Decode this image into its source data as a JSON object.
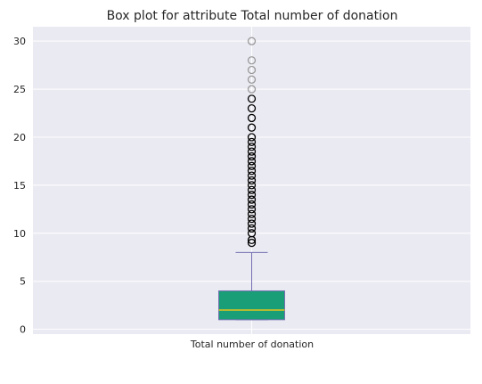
{
  "chart_data": {
    "type": "box",
    "title": "Box plot for attribute Total number of donation",
    "xlabel": "",
    "ylabel": "",
    "categories": [
      "Total number of donation"
    ],
    "ylim": [
      -0.5,
      31.5
    ],
    "yticks": [
      0,
      5,
      10,
      15,
      20,
      25,
      30
    ],
    "grid": true,
    "box": {
      "whisker_low": 1,
      "q1": 1,
      "median": 2,
      "q3": 4,
      "whisker_high": 8
    },
    "outliers": [
      9,
      9.3,
      10,
      10.5,
      11,
      11.5,
      12,
      12.5,
      13,
      13.5,
      14,
      14.5,
      15,
      15.5,
      16,
      16.5,
      17,
      17.5,
      18,
      18.5,
      19,
      19.5,
      20,
      21,
      22,
      23,
      24,
      25,
      26,
      27,
      28,
      30
    ],
    "colors": {
      "plot_bg": "#EAEAF2",
      "grid": "#ffffff",
      "box_fill": "#1A9E77",
      "box_edge": "#7570B3",
      "median": "#E6C31A",
      "whisker": "#7570B3",
      "outlier_dark": "#000000",
      "outlier_light": "#9a9a9a"
    }
  }
}
